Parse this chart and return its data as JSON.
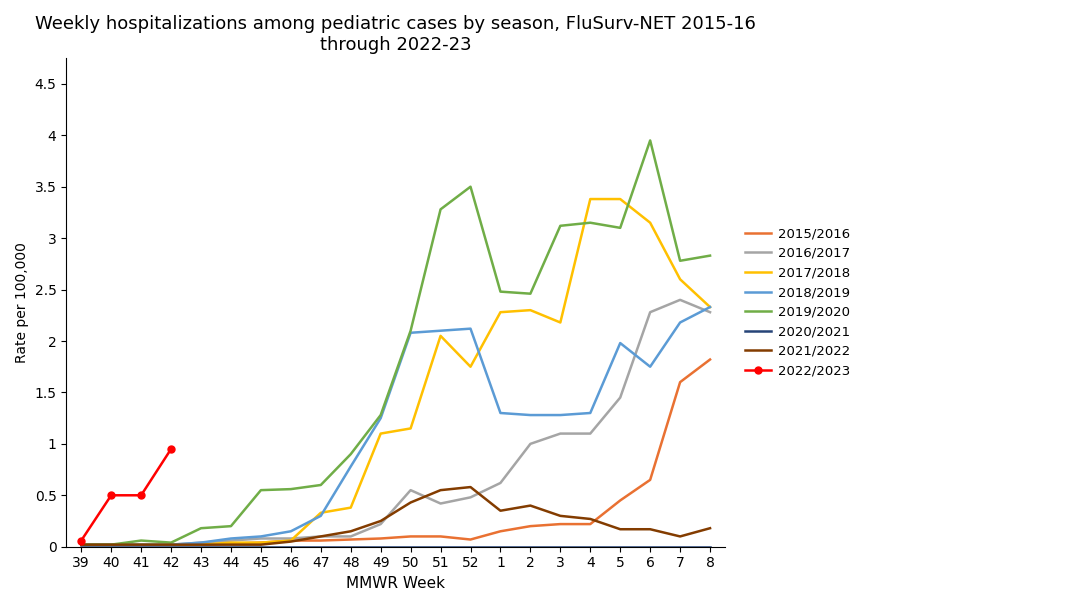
{
  "title": "Weekly hospitalizations among pediatric cases by season, FluSurv-NET 2015-16\nthrough 2022-23",
  "xlabel": "MMWR Week",
  "ylabel": "Rate per 100,000",
  "x_labels": [
    "39",
    "40",
    "41",
    "42",
    "43",
    "44",
    "45",
    "46",
    "47",
    "48",
    "49",
    "50",
    "51",
    "52",
    "1",
    "2",
    "3",
    "4",
    "5",
    "6",
    "7",
    "8"
  ],
  "ylim": [
    0,
    4.75
  ],
  "yticks": [
    0,
    0.5,
    1,
    1.5,
    2,
    2.5,
    3,
    3.5,
    4,
    4.5
  ],
  "series": [
    {
      "label": "2015/2016",
      "color": "#E97132",
      "marker": null,
      "data": [
        0.02,
        0.02,
        0.02,
        0.02,
        0.02,
        0.03,
        0.04,
        0.06,
        0.06,
        0.07,
        0.08,
        0.1,
        0.1,
        0.07,
        0.15,
        0.2,
        0.22,
        0.22,
        0.45,
        0.65,
        1.6,
        1.82
      ]
    },
    {
      "label": "2016/2017",
      "color": "#A5A5A5",
      "marker": null,
      "data": [
        0.02,
        0.02,
        0.02,
        0.02,
        0.04,
        0.06,
        0.08,
        0.08,
        0.1,
        0.1,
        0.22,
        0.55,
        0.42,
        0.48,
        0.62,
        1.0,
        1.1,
        1.1,
        1.45,
        2.28,
        2.4,
        2.28
      ]
    },
    {
      "label": "2017/2018",
      "color": "#FFC000",
      "marker": null,
      "data": [
        0.02,
        0.02,
        0.02,
        0.02,
        0.02,
        0.04,
        0.04,
        0.06,
        0.33,
        0.38,
        1.1,
        1.15,
        2.05,
        1.75,
        2.28,
        2.3,
        2.18,
        3.38,
        3.38,
        3.15,
        2.6,
        2.33
      ]
    },
    {
      "label": "2018/2019",
      "color": "#5B9BD5",
      "marker": null,
      "data": [
        0.02,
        0.02,
        0.02,
        0.02,
        0.04,
        0.08,
        0.1,
        0.15,
        0.3,
        0.78,
        1.25,
        2.08,
        2.1,
        2.12,
        1.3,
        1.28,
        1.28,
        1.3,
        1.98,
        1.75,
        2.18,
        2.33
      ]
    },
    {
      "label": "2019/2020",
      "color": "#70AD47",
      "marker": null,
      "data": [
        0.02,
        0.02,
        0.06,
        0.04,
        0.18,
        0.2,
        0.55,
        0.56,
        0.6,
        0.9,
        1.28,
        2.1,
        3.28,
        3.5,
        2.48,
        2.46,
        3.12,
        3.15,
        3.1,
        3.95,
        2.78,
        2.83
      ]
    },
    {
      "label": "2020/2021",
      "color": "#264478",
      "marker": null,
      "data": [
        0.0,
        0.0,
        0.0,
        0.0,
        0.0,
        0.0,
        0.0,
        0.0,
        0.0,
        0.0,
        0.0,
        0.0,
        0.0,
        0.0,
        0.0,
        0.0,
        0.0,
        0.0,
        0.0,
        0.0,
        0.0,
        0.0
      ]
    },
    {
      "label": "2021/2022",
      "color": "#833C00",
      "marker": null,
      "data": [
        0.02,
        0.02,
        0.02,
        0.02,
        0.02,
        0.02,
        0.02,
        0.05,
        0.1,
        0.15,
        0.25,
        0.43,
        0.55,
        0.58,
        0.35,
        0.4,
        0.3,
        0.27,
        0.17,
        0.17,
        0.1,
        0.18
      ]
    },
    {
      "label": "2022/2023",
      "color": "#FF0000",
      "marker": "o",
      "data": [
        0.06,
        0.5,
        0.5,
        0.95,
        null,
        null,
        null,
        null,
        null,
        null,
        null,
        null,
        null,
        null,
        null,
        null,
        null,
        null,
        null,
        null,
        null,
        null
      ]
    }
  ]
}
